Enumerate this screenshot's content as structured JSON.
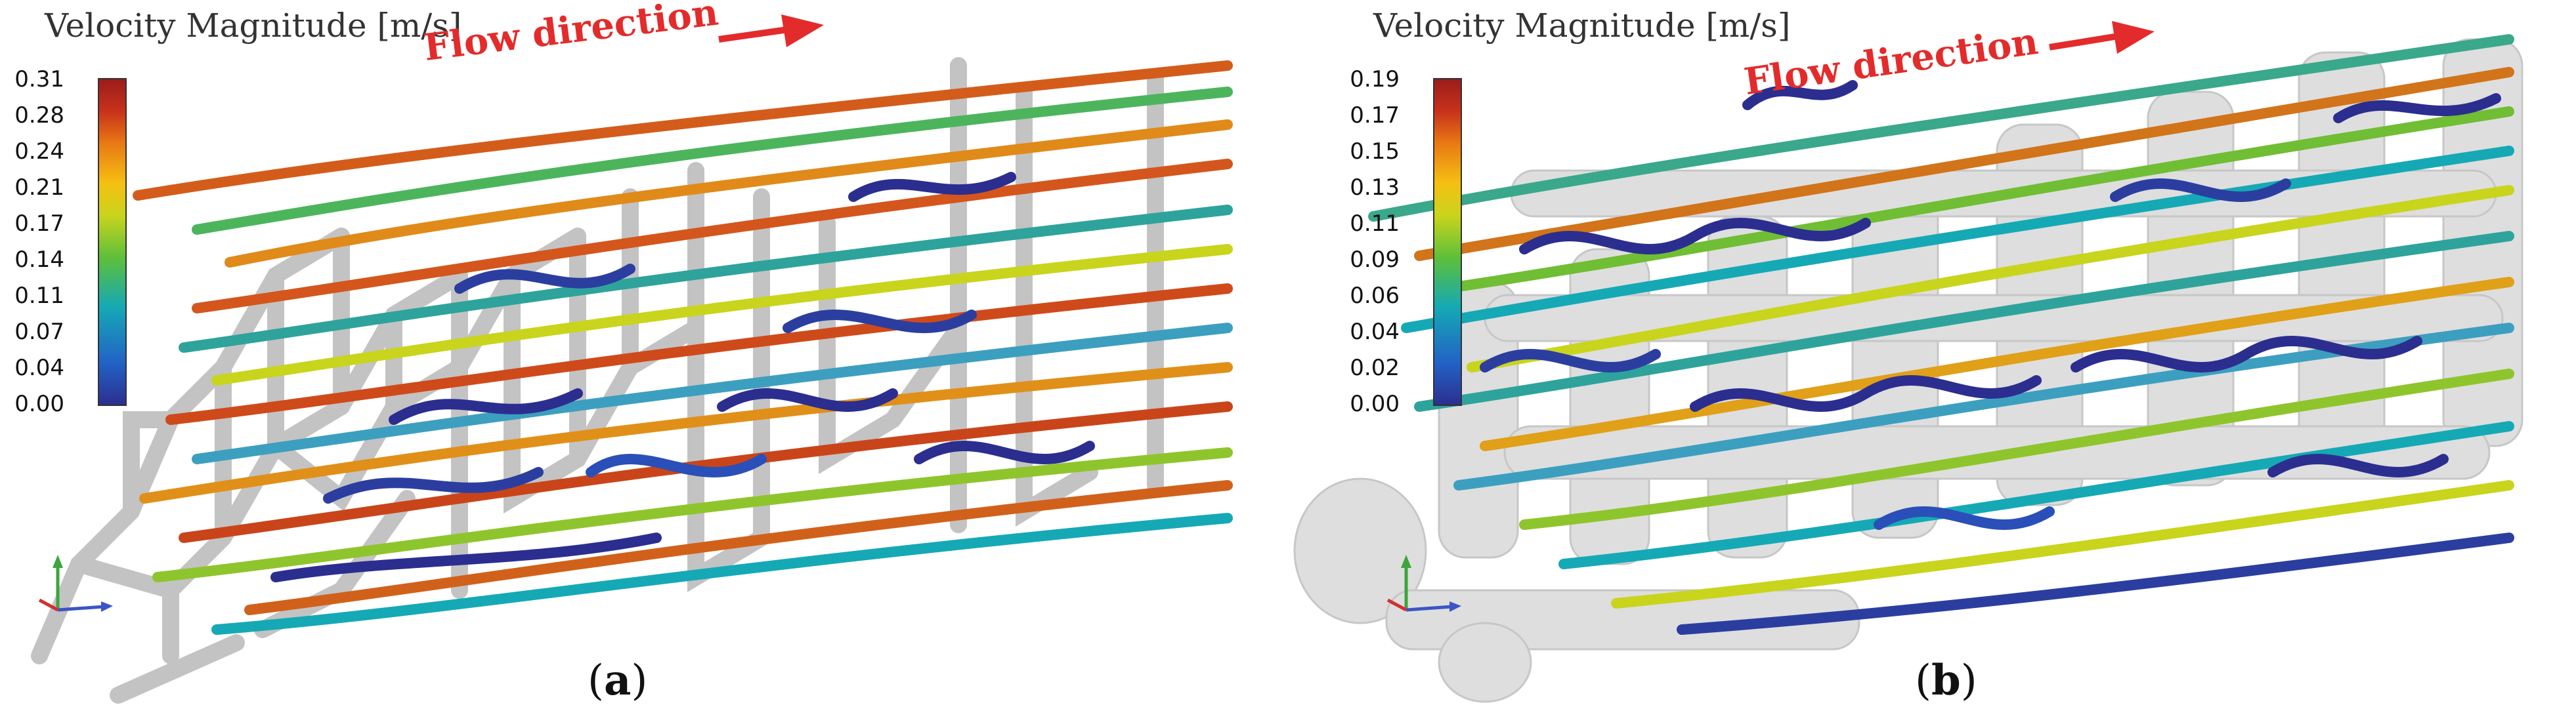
{
  "colorbar_colors": [
    "#2b2e8f",
    "#2262c6",
    "#15a9b5",
    "#5cbf3b",
    "#c9d41c",
    "#f5c012",
    "#e97a14",
    "#c8321a",
    "#9a1c1c"
  ],
  "panels": [
    {
      "id": "a",
      "title": "Velocity Magnitude [m/s]",
      "ticks": [
        "0.31",
        "0.28",
        "0.24",
        "0.21",
        "0.17",
        "0.14",
        "0.11",
        "0.07",
        "0.04",
        "0.00"
      ],
      "flow_label": "Flow direction",
      "label_open": "(",
      "label_letter": "a",
      "label_close": ")"
    },
    {
      "id": "b",
      "title": "Velocity Magnitude [m/s]",
      "ticks": [
        "0.19",
        "0.17",
        "0.15",
        "0.13",
        "0.11",
        "0.09",
        "0.06",
        "0.04",
        "0.02",
        "0.00"
      ],
      "flow_label": "Flow direction",
      "label_open": "(",
      "label_letter": "b",
      "label_close": ")"
    }
  ]
}
